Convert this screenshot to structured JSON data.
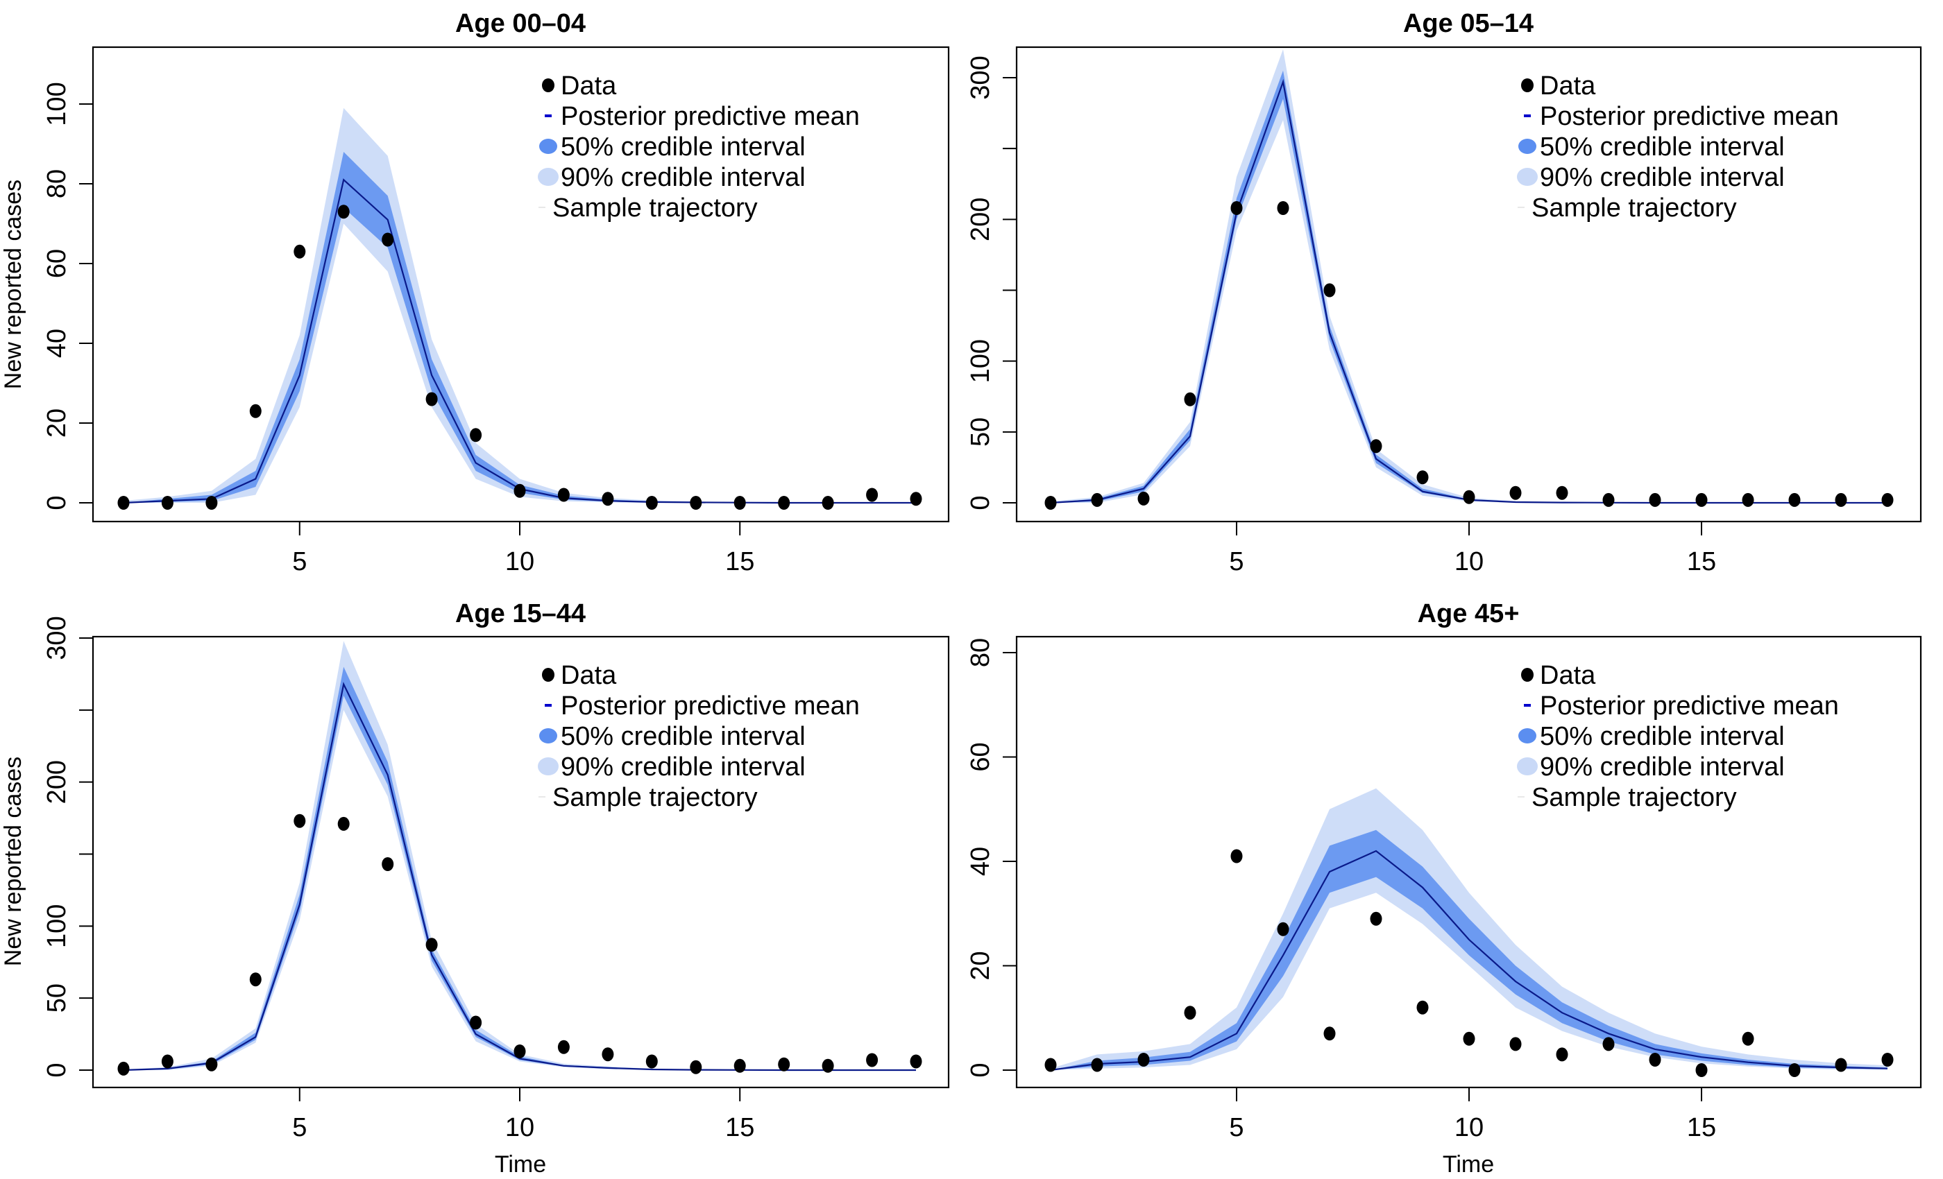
{
  "chart_data": [
    {
      "type": "line",
      "title": "Age 00–04",
      "xlabel": "",
      "ylabel": "New reported cases",
      "xlim": [
        1,
        19
      ],
      "ylim": [
        0,
        110
      ],
      "xticks": [
        5,
        10,
        15
      ],
      "yticks": [
        0,
        20,
        40,
        60,
        80,
        100
      ],
      "ytick_labels": [
        "0",
        "20",
        "40",
        "60",
        "80",
        "100"
      ],
      "x": [
        1,
        2,
        3,
        4,
        5,
        6,
        7,
        8,
        9,
        10,
        11,
        12,
        13,
        14,
        15,
        16,
        17,
        18,
        19
      ],
      "series": [
        {
          "name": "Data",
          "kind": "points",
          "values": [
            0,
            0,
            0,
            23,
            63,
            73,
            66,
            26,
            17,
            3,
            2,
            1,
            0,
            0,
            0,
            0,
            0,
            2,
            1
          ]
        },
        {
          "name": "Posterior predictive mean",
          "kind": "line",
          "values": [
            0,
            0.5,
            1,
            6,
            32,
            81,
            71,
            32,
            10,
            3.5,
            1.2,
            0.5,
            0.2,
            0.1,
            0.05,
            0,
            0,
            0,
            0
          ]
        },
        {
          "name": "50% credible interval",
          "kind": "band",
          "lower": [
            0,
            0.2,
            0.5,
            4,
            28,
            74,
            64,
            28,
            8,
            2.5,
            0.8,
            0.3,
            0.1,
            0,
            0,
            0,
            0,
            0,
            0
          ],
          "upper": [
            0,
            1,
            2,
            8,
            36,
            88,
            77,
            36,
            12,
            4.5,
            1.8,
            0.8,
            0.4,
            0.2,
            0.1,
            0.05,
            0,
            0,
            0
          ]
        },
        {
          "name": "90% credible interval",
          "kind": "band",
          "lower": [
            0,
            0,
            0,
            2,
            24,
            70,
            58,
            24,
            6,
            1.5,
            0.4,
            0.1,
            0,
            0,
            0,
            0,
            0,
            0,
            0
          ],
          "upper": [
            0.5,
            1.5,
            3,
            11,
            42,
            99,
            87,
            41,
            15,
            6,
            2.5,
            1.2,
            0.6,
            0.3,
            0.2,
            0.1,
            0.05,
            0,
            0
          ]
        }
      ],
      "grid": false,
      "legend_position": "top-right"
    },
    {
      "type": "line",
      "title": "Age 05–14",
      "xlabel": "",
      "ylabel": "",
      "xlim": [
        1,
        19
      ],
      "ylim": [
        0,
        300
      ],
      "xticks": [
        5,
        10,
        15
      ],
      "yticks": [
        0,
        50,
        100,
        150,
        200,
        250,
        300
      ],
      "ytick_labels": [
        "0",
        "50",
        "100",
        "",
        "200",
        "",
        "300"
      ],
      "x": [
        1,
        2,
        3,
        4,
        5,
        6,
        7,
        8,
        9,
        10,
        11,
        12,
        13,
        14,
        15,
        16,
        17,
        18,
        19
      ],
      "series": [
        {
          "name": "Data",
          "kind": "points",
          "values": [
            0,
            2,
            3,
            73,
            208,
            208,
            150,
            40,
            18,
            4,
            7,
            7,
            2,
            2,
            2,
            2,
            2,
            2,
            2
          ]
        },
        {
          "name": "Posterior predictive mean",
          "kind": "line",
          "values": [
            0,
            2,
            10,
            47,
            205,
            297,
            120,
            31,
            8,
            2,
            0.5,
            0.2,
            0.1,
            0,
            0,
            0,
            0,
            0,
            0
          ]
        },
        {
          "name": "50% credible interval",
          "kind": "band",
          "lower": [
            0,
            1,
            8,
            44,
            200,
            285,
            115,
            28,
            7,
            1.5,
            0.3,
            0.1,
            0,
            0,
            0,
            0,
            0,
            0,
            0
          ],
          "upper": [
            0,
            3,
            12,
            52,
            215,
            305,
            125,
            34,
            10,
            2.5,
            0.8,
            0.3,
            0.1,
            0.05,
            0,
            0,
            0,
            0,
            0
          ]
        },
        {
          "name": "90% credible interval",
          "kind": "band",
          "lower": [
            0,
            0,
            6,
            40,
            192,
            270,
            108,
            25,
            5,
            1,
            0.1,
            0,
            0,
            0,
            0,
            0,
            0,
            0,
            0
          ],
          "upper": [
            1,
            4,
            14,
            57,
            230,
            320,
            132,
            38,
            13,
            3.5,
            1.2,
            0.5,
            0.2,
            0.1,
            0.05,
            0,
            0,
            0,
            0
          ]
        }
      ],
      "grid": false,
      "legend_position": "top-right"
    },
    {
      "type": "line",
      "title": "Age 15–44",
      "xlabel": "Time",
      "ylabel": "New reported cases",
      "xlim": [
        1,
        19
      ],
      "ylim": [
        0,
        300
      ],
      "xticks": [
        5,
        10,
        15
      ],
      "yticks": [
        0,
        50,
        100,
        150,
        200,
        250,
        300
      ],
      "ytick_labels": [
        "0",
        "50",
        "100",
        "",
        "200",
        "",
        "300"
      ],
      "x": [
        1,
        2,
        3,
        4,
        5,
        6,
        7,
        8,
        9,
        10,
        11,
        12,
        13,
        14,
        15,
        16,
        17,
        18,
        19
      ],
      "series": [
        {
          "name": "Data",
          "kind": "points",
          "values": [
            1,
            6,
            4,
            63,
            173,
            171,
            143,
            87,
            33,
            13,
            16,
            11,
            6,
            2,
            3,
            4,
            3,
            7,
            6
          ]
        },
        {
          "name": "Posterior predictive mean",
          "kind": "line",
          "values": [
            0,
            1,
            5,
            23,
            115,
            268,
            205,
            80,
            25,
            8,
            3,
            1.5,
            0.5,
            0.2,
            0.1,
            0,
            0,
            0,
            0
          ]
        },
        {
          "name": "50% credible interval",
          "kind": "band",
          "lower": [
            0,
            0.5,
            4,
            21,
            110,
            260,
            198,
            76,
            23,
            7,
            2.5,
            1,
            0.3,
            0.1,
            0,
            0,
            0,
            0,
            0
          ],
          "upper": [
            0,
            1.5,
            6,
            26,
            122,
            280,
            214,
            84,
            28,
            9.5,
            3.5,
            2,
            0.8,
            0.3,
            0.2,
            0.1,
            0,
            0,
            0
          ]
        },
        {
          "name": "90% credible interval",
          "kind": "band",
          "lower": [
            0,
            0,
            3,
            19,
            104,
            250,
            190,
            72,
            20,
            6,
            2,
            0.7,
            0.2,
            0,
            0,
            0,
            0,
            0,
            0
          ],
          "upper": [
            0.5,
            2,
            8,
            29,
            130,
            298,
            226,
            90,
            32,
            11,
            4.5,
            2.5,
            1,
            0.5,
            0.3,
            0.2,
            0.1,
            0,
            0
          ]
        }
      ],
      "grid": false,
      "legend_position": "top-right"
    },
    {
      "type": "line",
      "title": "Age 45+",
      "xlabel": "Time",
      "ylabel": "",
      "xlim": [
        1,
        19
      ],
      "ylim": [
        0,
        80
      ],
      "xticks": [
        5,
        10,
        15
      ],
      "yticks": [
        0,
        20,
        40,
        60,
        80
      ],
      "ytick_labels": [
        "0",
        "20",
        "40",
        "60",
        "80"
      ],
      "x": [
        1,
        2,
        3,
        4,
        5,
        6,
        7,
        8,
        9,
        10,
        11,
        12,
        13,
        14,
        15,
        16,
        17,
        18,
        19
      ],
      "series": [
        {
          "name": "Data",
          "kind": "points",
          "values": [
            1,
            1,
            2,
            11,
            41,
            27,
            7,
            29,
            12,
            6,
            5,
            3,
            5,
            2,
            0,
            6,
            0,
            1,
            2
          ]
        },
        {
          "name": "Posterior predictive mean",
          "kind": "line",
          "values": [
            0,
            1.2,
            1.6,
            2.5,
            7,
            22,
            38,
            42,
            35,
            25,
            17,
            11,
            7,
            4,
            2.5,
            1.5,
            0.8,
            0.5,
            0.3
          ]
        },
        {
          "name": "50% credible interval",
          "kind": "band",
          "lower": [
            0,
            0.7,
            1,
            1.8,
            5.5,
            18,
            34,
            37,
            31,
            22,
            14.5,
            9,
            5.5,
            3,
            1.8,
            1,
            0.5,
            0.3,
            0.2
          ],
          "upper": [
            0,
            1.8,
            2.4,
            3.5,
            9,
            25,
            43,
            46,
            39,
            29,
            20,
            13,
            8.5,
            5,
            3.2,
            2,
            1.2,
            0.8,
            0.5
          ]
        },
        {
          "name": "90% credible interval",
          "kind": "band",
          "lower": [
            0,
            0.3,
            0.5,
            1,
            4,
            14,
            31,
            34,
            28,
            20,
            12,
            7.5,
            4.5,
            2.5,
            1.3,
            0.7,
            0.3,
            0.1,
            0.05
          ],
          "upper": [
            0.3,
            3,
            3.6,
            5,
            12,
            30,
            50,
            54,
            46,
            34,
            24,
            16,
            11,
            7,
            4.5,
            3,
            2,
            1.3,
            0.9
          ]
        }
      ],
      "grid": false,
      "legend_position": "top-right"
    }
  ],
  "legend": {
    "items": [
      {
        "label": "Data",
        "symbol": "point"
      },
      {
        "label": "Posterior predictive mean",
        "symbol": "line-dash"
      },
      {
        "label": "50% credible interval",
        "symbol": "band-50"
      },
      {
        "label": "90% credible interval",
        "symbol": "band-90"
      },
      {
        "label": "Sample trajectory",
        "symbol": "thin-line"
      }
    ]
  },
  "colors": {
    "data_point": "#000000",
    "mean_line": "#0a1a8a",
    "legend_mean": "#0000cc",
    "band_50": "#5b8ef0",
    "band_90": "#c9d9f7",
    "sample": "#e8e8e8",
    "axis": "#000000"
  }
}
